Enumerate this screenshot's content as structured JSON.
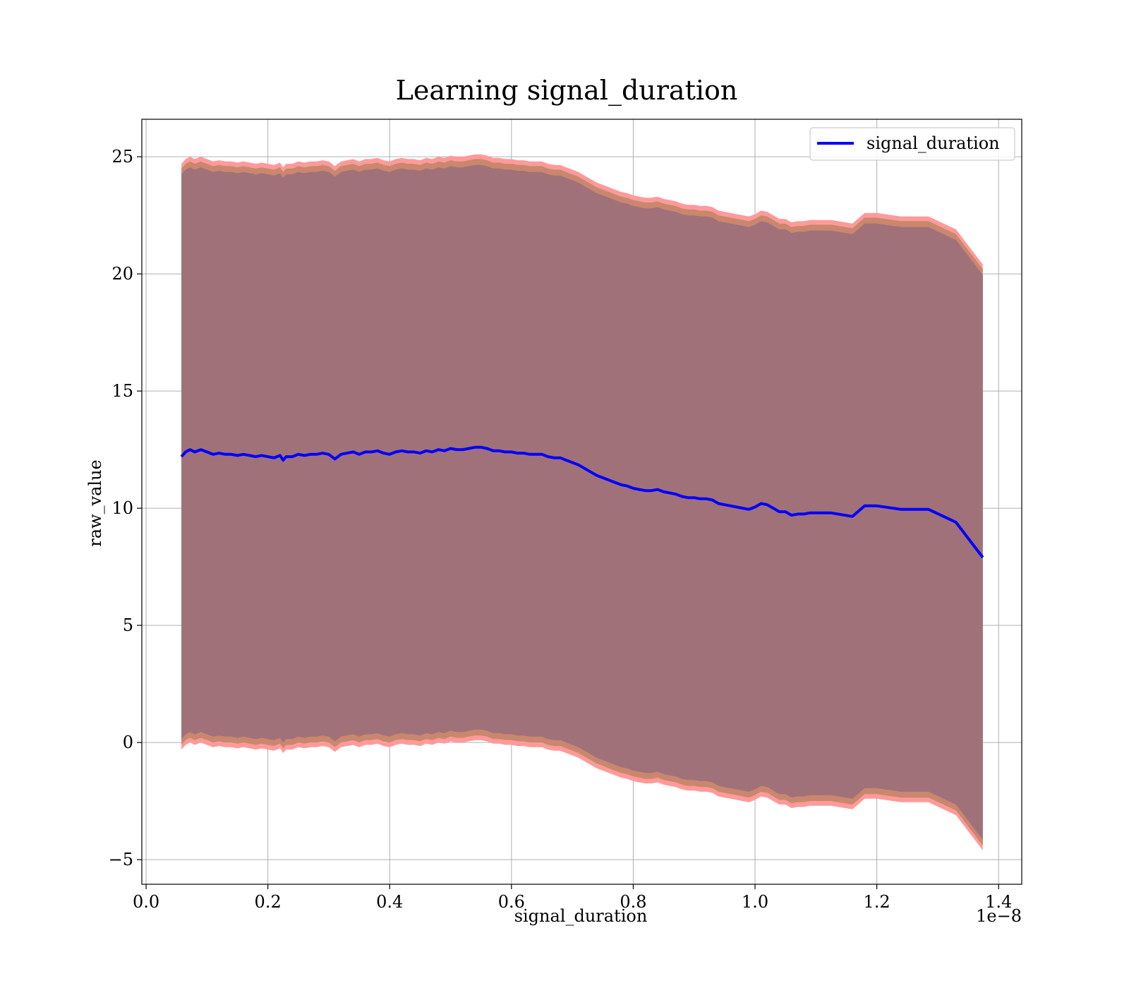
{
  "chart_data": {
    "type": "line",
    "title": "Learning signal_duration",
    "xlabel": "signal_duration",
    "ylabel": "raw_value",
    "x_offset_label": "1e−8",
    "xlim": [
      -0.007,
      1.438
    ],
    "ylim": [
      -6.05,
      26.6
    ],
    "x_ticks": [
      0.0,
      0.2,
      0.4,
      0.6,
      0.8,
      1.0,
      1.2,
      1.4
    ],
    "x_tick_labels": [
      "0.0",
      "0.2",
      "0.4",
      "0.6",
      "0.8",
      "1.0",
      "1.2",
      "1.4"
    ],
    "y_ticks": [
      -5,
      0,
      5,
      10,
      15,
      20,
      25
    ],
    "y_tick_labels": [
      "−5",
      "0",
      "5",
      "10",
      "15",
      "20",
      "25"
    ],
    "grid": true,
    "legend_position": "top-right",
    "colors": {
      "line": "#0000ff",
      "band_outer": "#ff9a9a",
      "band_mid": "#c9876e",
      "band_inner": "#a1717a",
      "grid": "#b0b0b0"
    },
    "band_offsets": {
      "outer": 12.5,
      "mid": 12.3,
      "inner": 12.05
    },
    "series": [
      {
        "name": "signal_duration",
        "x": [
          0.058,
          0.065,
          0.072,
          0.08,
          0.09,
          0.1,
          0.11,
          0.12,
          0.13,
          0.14,
          0.15,
          0.16,
          0.17,
          0.18,
          0.19,
          0.2,
          0.21,
          0.22,
          0.225,
          0.23,
          0.24,
          0.25,
          0.26,
          0.27,
          0.28,
          0.29,
          0.3,
          0.31,
          0.32,
          0.33,
          0.34,
          0.35,
          0.36,
          0.37,
          0.38,
          0.39,
          0.4,
          0.41,
          0.42,
          0.43,
          0.44,
          0.45,
          0.46,
          0.47,
          0.48,
          0.49,
          0.5,
          0.51,
          0.52,
          0.53,
          0.54,
          0.55,
          0.56,
          0.57,
          0.58,
          0.59,
          0.6,
          0.61,
          0.62,
          0.63,
          0.64,
          0.65,
          0.66,
          0.67,
          0.68,
          0.69,
          0.7,
          0.71,
          0.72,
          0.73,
          0.74,
          0.75,
          0.76,
          0.77,
          0.78,
          0.79,
          0.8,
          0.81,
          0.82,
          0.83,
          0.84,
          0.85,
          0.86,
          0.87,
          0.88,
          0.89,
          0.9,
          0.91,
          0.92,
          0.93,
          0.94,
          0.95,
          0.96,
          0.97,
          0.98,
          0.99,
          1.0,
          1.01,
          1.02,
          1.03,
          1.04,
          1.05,
          1.06,
          1.07,
          1.08,
          1.09,
          1.1,
          1.125,
          1.16,
          1.18,
          1.2,
          1.24,
          1.285,
          1.33,
          1.374
        ],
        "y": [
          12.2,
          12.4,
          12.5,
          12.4,
          12.5,
          12.4,
          12.3,
          12.35,
          12.3,
          12.3,
          12.25,
          12.3,
          12.25,
          12.2,
          12.25,
          12.2,
          12.15,
          12.25,
          12.05,
          12.2,
          12.2,
          12.3,
          12.25,
          12.3,
          12.3,
          12.35,
          12.3,
          12.1,
          12.3,
          12.35,
          12.4,
          12.3,
          12.4,
          12.4,
          12.45,
          12.35,
          12.3,
          12.4,
          12.45,
          12.4,
          12.4,
          12.35,
          12.45,
          12.4,
          12.5,
          12.45,
          12.55,
          12.5,
          12.5,
          12.55,
          12.6,
          12.6,
          12.55,
          12.45,
          12.45,
          12.4,
          12.4,
          12.35,
          12.35,
          12.3,
          12.3,
          12.3,
          12.2,
          12.15,
          12.15,
          12.05,
          11.95,
          11.85,
          11.7,
          11.55,
          11.4,
          11.3,
          11.2,
          11.1,
          11.0,
          10.95,
          10.85,
          10.8,
          10.75,
          10.75,
          10.8,
          10.7,
          10.65,
          10.6,
          10.5,
          10.45,
          10.45,
          10.4,
          10.4,
          10.35,
          10.2,
          10.15,
          10.1,
          10.05,
          10.0,
          9.95,
          10.05,
          10.2,
          10.15,
          10.0,
          9.85,
          9.85,
          9.7,
          9.75,
          9.75,
          9.8,
          9.8,
          9.8,
          9.65,
          10.1,
          10.1,
          9.95,
          9.95,
          9.4,
          7.9
        ]
      }
    ]
  }
}
